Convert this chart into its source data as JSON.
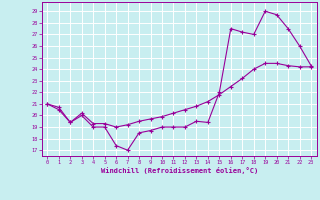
{
  "xlabel": "Windchill (Refroidissement éolien,°C)",
  "background_color": "#c8eef0",
  "line_color": "#990099",
  "grid_color": "#ffffff",
  "x_ticks": [
    0,
    1,
    2,
    3,
    4,
    5,
    6,
    7,
    8,
    9,
    10,
    11,
    12,
    13,
    14,
    15,
    16,
    17,
    18,
    19,
    20,
    21,
    22,
    23
  ],
  "y_ticks": [
    17,
    18,
    19,
    20,
    21,
    22,
    23,
    24,
    25,
    26,
    27,
    28,
    29
  ],
  "xlim": [
    -0.5,
    23.5
  ],
  "ylim": [
    16.5,
    29.8
  ],
  "line1_x": [
    0,
    1,
    2,
    3,
    4,
    5,
    6,
    7,
    8,
    9,
    10,
    11,
    12,
    13,
    14,
    15,
    16,
    17,
    18,
    19,
    20,
    21,
    22,
    23
  ],
  "line1_y": [
    21.0,
    20.7,
    19.4,
    20.0,
    19.0,
    19.0,
    17.4,
    17.0,
    18.5,
    18.7,
    19.0,
    19.0,
    19.0,
    19.5,
    19.4,
    22.0,
    27.5,
    27.2,
    27.0,
    29.0,
    28.7,
    27.5,
    26.0,
    24.3
  ],
  "line2_x": [
    0,
    1,
    2,
    3,
    4,
    5,
    6,
    7,
    8,
    9,
    10,
    11,
    12,
    13,
    14,
    15,
    16,
    17,
    18,
    19,
    20,
    21,
    22,
    23
  ],
  "line2_y": [
    21.0,
    20.5,
    19.4,
    20.2,
    19.3,
    19.3,
    19.0,
    19.2,
    19.5,
    19.7,
    19.9,
    20.2,
    20.5,
    20.8,
    21.2,
    21.8,
    22.5,
    23.2,
    24.0,
    24.5,
    24.5,
    24.3,
    24.2,
    24.2
  ]
}
